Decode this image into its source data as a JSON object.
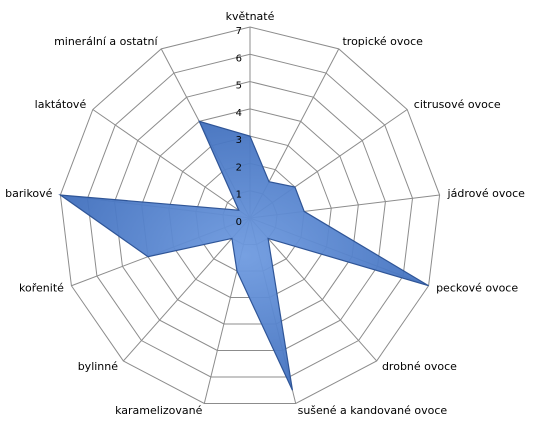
{
  "chart_data": {
    "type": "radar",
    "categories": [
      "květnaté",
      "tropické ovoce",
      "citrusové ovoce",
      "jádrové ovoce",
      "peckové ovoce",
      "drobné ovoce",
      "sušené a kandované ovoce",
      "karamelizované",
      "bylinné",
      "kořenité",
      "barikové",
      "laktátové",
      "minerální a ostatní"
    ],
    "values": [
      3,
      1.5,
      2,
      2,
      7,
      1,
      6.5,
      2,
      1,
      4,
      7,
      0.5,
      4
    ],
    "color": "#4a7ccc",
    "ylim": [
      0,
      7
    ],
    "yticks": [
      0,
      1,
      2,
      3,
      4,
      5,
      6,
      7
    ],
    "grid": true
  }
}
